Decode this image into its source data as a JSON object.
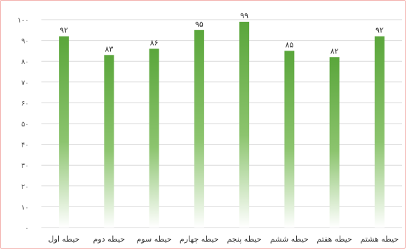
{
  "chart_data": {
    "type": "bar",
    "categories": [
      "حیطه اول",
      "حیطه دوم",
      "حیطه سوم",
      "حیطه چهارم",
      "حیطه پنجم",
      "حیطه ششم",
      "حیطه هفتم",
      "حیطه هشتم"
    ],
    "values": [
      92,
      83,
      86,
      95,
      99,
      85,
      82,
      92
    ],
    "data_labels": [
      "۹۲",
      "۸۳",
      "۸۶",
      "۹۵",
      "۹۹",
      "۸۵",
      "۸۲",
      "۹۲"
    ],
    "yticks": [
      0,
      10,
      20,
      30,
      40,
      50,
      60,
      70,
      80,
      90,
      100
    ],
    "ytick_labels": [
      "۰",
      "۱۰",
      "۲۰",
      "۳۰",
      "۴۰",
      "۵۰",
      "۶۰",
      "۷۰",
      "۸۰",
      "۹۰",
      "۱۰۰"
    ],
    "ylim": [
      0,
      100
    ],
    "title": "",
    "xlabel": "",
    "ylabel": "",
    "grid": true,
    "legend": "none",
    "bar_color": "#5aa63b",
    "bar_color_fade": "#ffffff",
    "gridline_color": "#d9d9d9",
    "frame_border_color": "#f3b1ad"
  }
}
